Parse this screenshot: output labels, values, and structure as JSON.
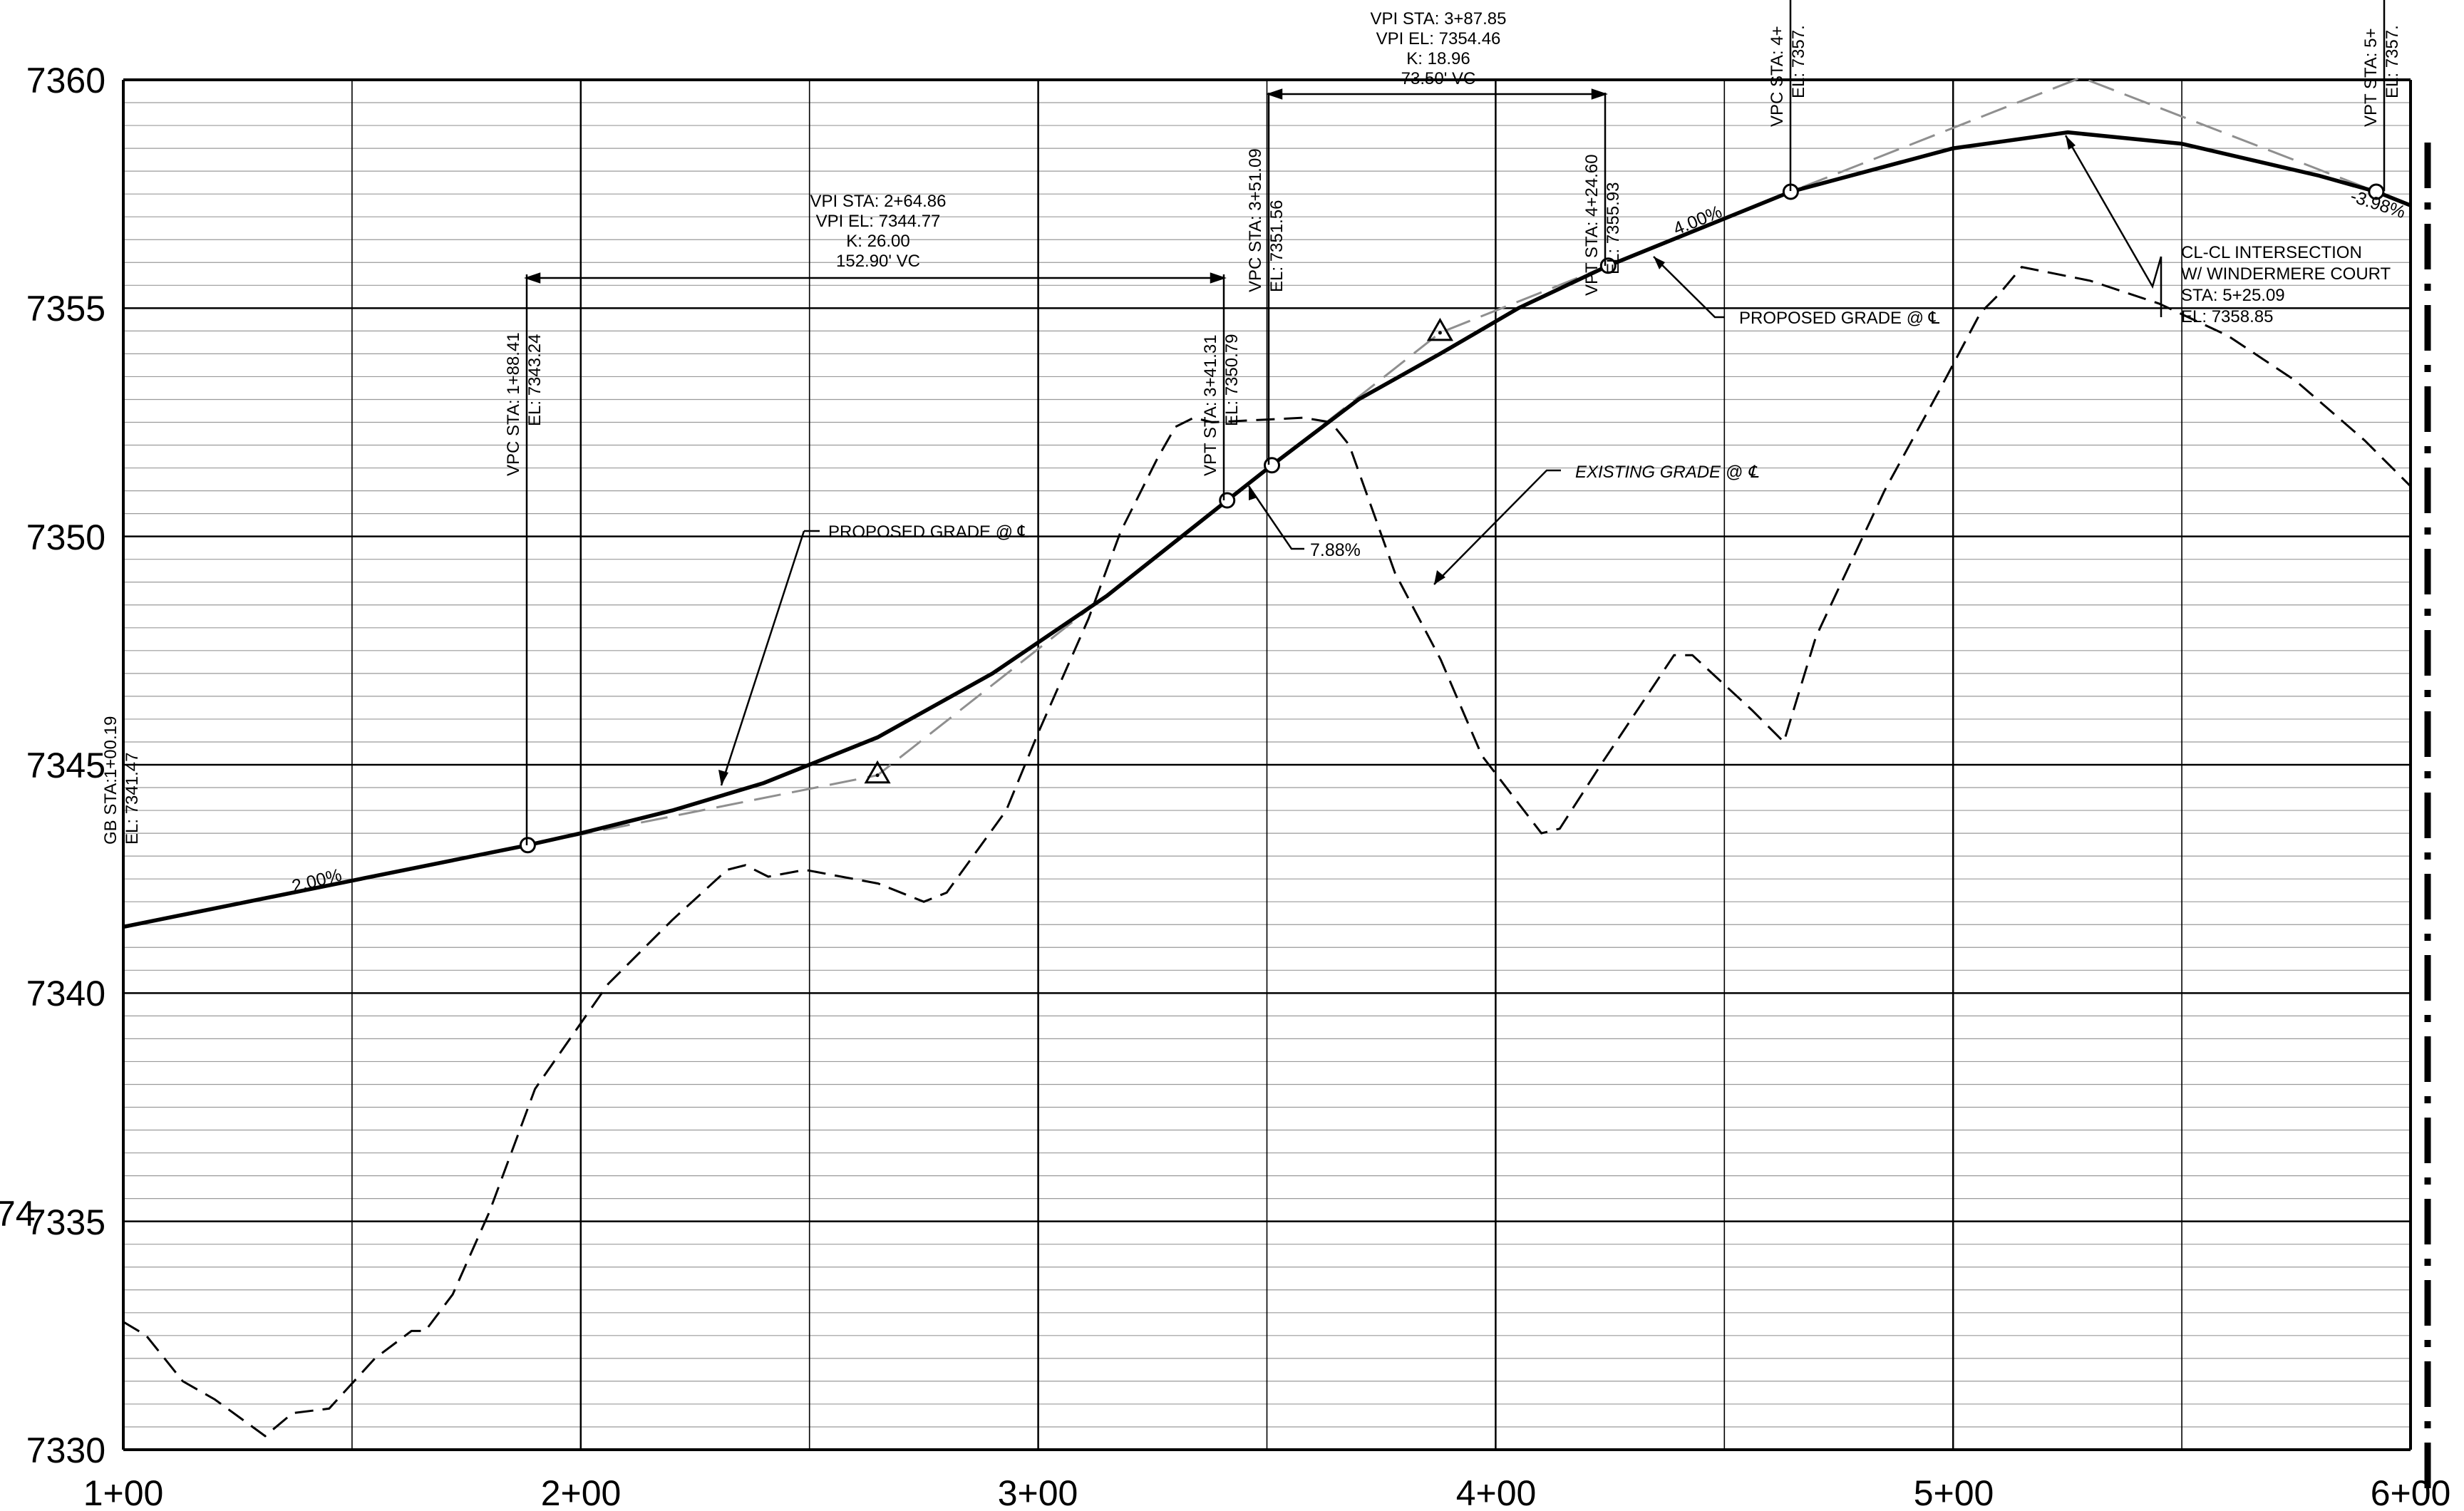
{
  "drawing": {
    "elevation_labels": [
      "7360",
      "7355",
      "7350",
      "7345",
      "7340",
      "7335",
      "7330"
    ],
    "station_labels": [
      "1+00",
      "2+00",
      "3+00",
      "4+00",
      "5+00",
      "6+00"
    ],
    "left_edge_fragment": "74"
  },
  "callouts": {
    "vpc1": {
      "sta": "VPC STA: 1+88.41",
      "el": "EL: 7343.24"
    },
    "vpi1": {
      "sta": "VPI STA:  2+64.86",
      "el": "VPI EL:  7344.77",
      "k": "K:  26.00",
      "vc": "152.90' VC"
    },
    "vpt1": {
      "sta": "VPT STA:  3+41.31",
      "el": "EL:  7350.79"
    },
    "vpc2": {
      "sta": "VPC STA: 3+51.09",
      "el": "EL: 7351.56"
    },
    "vpi2": {
      "sta": "VPI STA:  3+87.85",
      "el": "VPI EL:  7354.46",
      "k": "K:  18.96",
      "vc": "73.50' VC"
    },
    "vpt2": {
      "sta": "VPT STA:  4+24.60",
      "el": "EL:  7355.93"
    },
    "vpc3": {
      "sta": "VPC STA:  4+",
      "el": "EL:  7357."
    },
    "vpt3": {
      "sta": "VPT STA:  5+",
      "el": "EL:  7357."
    },
    "gb": {
      "sta": "GB STA:1+00.19",
      "el": "EL: 7341.47"
    },
    "intersection": {
      "line1": "CL-CL INTERSECTION",
      "line2": "W/ WINDERMERE COURT",
      "line3": "STA: 5+25.09",
      "line4": "EL: 7358.85"
    },
    "proposed_grade_1": "PROPOSED GRADE @ ℄",
    "proposed_grade_2": "PROPOSED GRADE @ ℄",
    "existing_grade": "EXISTING GRADE @ ℄",
    "grade_200": "2.00%",
    "grade_788": "7.88%",
    "grade_400": "4.00%",
    "grade_398": "-3.98%"
  },
  "chart_data": {
    "type": "line",
    "x_range": [
      100,
      600
    ],
    "y_range": [
      7330,
      7360
    ],
    "x_major_step": 100,
    "x_minor_step": 50,
    "y_major_step": 5,
    "y_minor_step": 0.5,
    "x_tick_labels": [
      "1+00",
      "2+00",
      "3+00",
      "4+00",
      "5+00",
      "6+00"
    ],
    "y_tick_labels": [
      "7330",
      "7335",
      "7340",
      "7345",
      "7350",
      "7355",
      "7360"
    ],
    "grid": true,
    "proposed_grade_points": [
      [
        100,
        7341.45
      ],
      [
        188.41,
        7343.24
      ],
      [
        200,
        7343.5
      ],
      [
        220,
        7344.0
      ],
      [
        240,
        7344.6
      ],
      [
        264.86,
        7345.6
      ],
      [
        290,
        7347.0
      ],
      [
        315,
        7348.7
      ],
      [
        341.31,
        7350.79
      ],
      [
        351.09,
        7351.56
      ],
      [
        370,
        7353.0
      ],
      [
        387.85,
        7354.0
      ],
      [
        405,
        7355.0
      ],
      [
        424.6,
        7355.93
      ],
      [
        464.5,
        7357.55
      ],
      [
        500,
        7358.5
      ],
      [
        525.09,
        7358.85
      ],
      [
        550,
        7358.6
      ],
      [
        580,
        7357.9
      ],
      [
        592.5,
        7357.55
      ],
      [
        600,
        7357.25
      ]
    ],
    "existing_grade_points": [
      [
        100,
        7332.8
      ],
      [
        105,
        7332.5
      ],
      [
        113,
        7331.5
      ],
      [
        120,
        7331.1
      ],
      [
        131,
        7330.3
      ],
      [
        137,
        7330.8
      ],
      [
        145,
        7330.9
      ],
      [
        155,
        7332.0
      ],
      [
        163,
        7332.6
      ],
      [
        166,
        7332.6
      ],
      [
        172,
        7333.4
      ],
      [
        180,
        7335.2
      ],
      [
        190,
        7337.9
      ],
      [
        206,
        7340.2
      ],
      [
        220,
        7341.6
      ],
      [
        232,
        7342.7
      ],
      [
        236,
        7342.8
      ],
      [
        241,
        7342.55
      ],
      [
        249,
        7342.7
      ],
      [
        265,
        7342.4
      ],
      [
        275,
        7342.0
      ],
      [
        280,
        7342.2
      ],
      [
        293,
        7344.0
      ],
      [
        300,
        7345.7
      ],
      [
        311,
        7348.2
      ],
      [
        318,
        7350.1
      ],
      [
        326,
        7351.7
      ],
      [
        330,
        7352.4
      ],
      [
        334,
        7352.6
      ],
      [
        338,
        7352.5
      ],
      [
        358,
        7352.6
      ],
      [
        364,
        7352.5
      ],
      [
        368,
        7352.0
      ],
      [
        378,
        7349.2
      ],
      [
        388,
        7347.3
      ],
      [
        397,
        7345.2
      ],
      [
        410,
        7343.5
      ],
      [
        414,
        7343.6
      ],
      [
        423,
        7345.0
      ],
      [
        439,
        7347.4
      ],
      [
        443,
        7347.4
      ],
      [
        456,
        7346.2
      ],
      [
        461,
        7345.7
      ],
      [
        463,
        7345.5
      ],
      [
        470,
        7347.8
      ],
      [
        485,
        7351.0
      ],
      [
        497,
        7353.2
      ],
      [
        506,
        7354.9
      ],
      [
        510,
        7355.3
      ],
      [
        515,
        7355.9
      ],
      [
        520,
        7355.8
      ],
      [
        530,
        7355.6
      ],
      [
        545,
        7355.1
      ],
      [
        560,
        7354.4
      ],
      [
        575,
        7353.4
      ],
      [
        590,
        7352.1
      ],
      [
        600,
        7351.1
      ]
    ],
    "tangent_points": [
      [
        188.41,
        7343.24
      ],
      [
        264.86,
        7344.77
      ],
      [
        341.31,
        7350.79
      ],
      [
        351.09,
        7351.56
      ],
      [
        387.85,
        7354.46
      ],
      [
        424.6,
        7355.93
      ],
      [
        464.5,
        7357.55
      ],
      [
        528,
        7360.05
      ],
      [
        592.5,
        7357.55
      ]
    ],
    "pvi_markers": [
      [
        264.86,
        7344.77
      ],
      [
        387.85,
        7354.46
      ]
    ],
    "curve_points": [
      [
        188.41,
        7343.24
      ],
      [
        341.31,
        7350.79
      ],
      [
        351.09,
        7351.56
      ],
      [
        424.6,
        7355.93
      ],
      [
        464.5,
        7357.55
      ],
      [
        592.5,
        7357.55
      ]
    ]
  }
}
